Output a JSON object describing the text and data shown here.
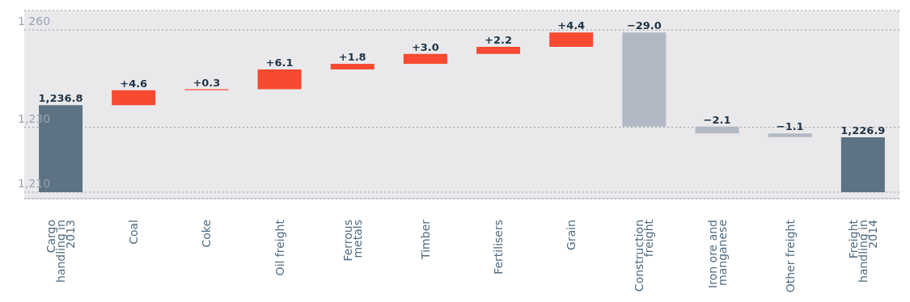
{
  "chart_data": {
    "type": "bar",
    "categories": [
      "Cargo handling in 2013",
      "Coal",
      "Coke",
      "Oil freight",
      "Ferrous metals",
      "Timber",
      "Fertilisers",
      "Grain",
      "Construction freight",
      "Iron ore and manganese",
      "Other freight",
      "Freight handling in 2014"
    ],
    "base": [
      1210,
      1236.8,
      1241.4,
      1241.7,
      1247.8,
      1249.6,
      1252.6,
      1254.8,
      1259.2,
      1230.2,
      1228.1,
      1210
    ],
    "values": [
      26.8,
      4.6,
      0.3,
      6.1,
      1.8,
      3.0,
      2.2,
      4.4,
      -29.0,
      -2.1,
      -1.1,
      16.9
    ],
    "value_labels": [
      "1,236.8",
      "+4.6",
      "+0.3",
      "+6.1",
      "+1.8",
      "+3.0",
      "+2.2",
      "+4.4",
      "−29.0",
      "−2.1",
      "−1.1",
      "1,226.9"
    ],
    "colors": [
      "#5d7282",
      "#f84a30",
      "#f84a30",
      "#f84a30",
      "#f84a30",
      "#f84a30",
      "#f84a30",
      "#f84a30",
      "#b3b9c4",
      "#b3b9c4",
      "#b3b9c4",
      "#5d7282"
    ],
    "ylim": [
      1208,
      1266
    ],
    "yticks": [
      {
        "value": 1210,
        "label": "1,210"
      },
      {
        "value": 1230,
        "label": "1,230"
      },
      {
        "value": 1260,
        "label": "1 260"
      }
    ],
    "grid": "y",
    "legend": false
  }
}
